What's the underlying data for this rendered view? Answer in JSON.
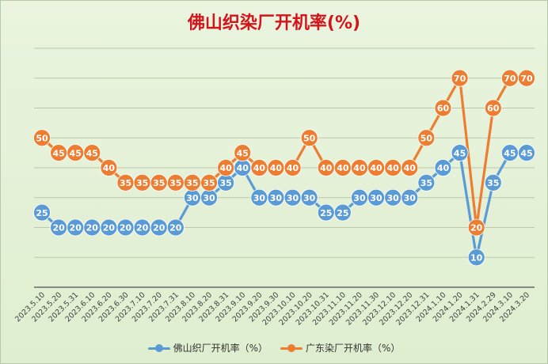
{
  "chart_data": {
    "type": "line",
    "title": "佛山织染厂开机率(%)",
    "xlabel": "",
    "ylabel": "",
    "ylim": [
      0,
      80
    ],
    "grid": true,
    "legend_position": "bottom",
    "categories": [
      "2023.5.10",
      "2023.5.20",
      "2023.5.31",
      "2023.6.10",
      "2023.6.20",
      "2023.6.30",
      "2023.7.10",
      "2023.7.20",
      "2023.7.31",
      "2023.8.10",
      "2023.8.20",
      "2023.8.31",
      "2023.9.10",
      "2023.9.20",
      "2023.9.30",
      "2023.10.10",
      "2023.10.20",
      "2023.10.31",
      "2023.11.10",
      "2023.11.20",
      "2023.11.30",
      "2023.12.10",
      "2023.12.20",
      "2023.12.31",
      "2024.1.10",
      "2024.1.20",
      "2024.1.31",
      "2024.2.29",
      "2024.3.10",
      "2024.3.20"
    ],
    "series": [
      {
        "name": "佛山织厂开机率（%）",
        "color": "#5b9bd5",
        "values": [
          25,
          20,
          20,
          20,
          20,
          20,
          20,
          20,
          20,
          30,
          30,
          35,
          40,
          30,
          30,
          30,
          30,
          25,
          25,
          30,
          30,
          30,
          30,
          35,
          40,
          45,
          10,
          35,
          45,
          45
        ]
      },
      {
        "name": "广东染厂开机率（%）",
        "color": "#ed7d31",
        "values": [
          50,
          45,
          45,
          45,
          40,
          35,
          35,
          35,
          35,
          35,
          35,
          40,
          45,
          40,
          40,
          40,
          50,
          40,
          40,
          40,
          40,
          40,
          40,
          50,
          60,
          70,
          20,
          60,
          70,
          70
        ]
      }
    ]
  }
}
